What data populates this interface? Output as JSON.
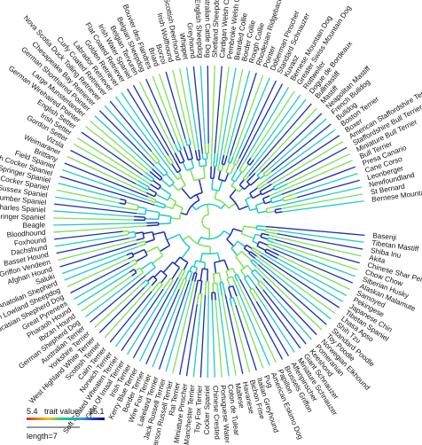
{
  "tree": {
    "tips": [
      "Basenji",
      "Tibetan Mastiff",
      "Shiba Inu",
      "Akita",
      "Chinese Shar Pei",
      "Chow Chow",
      "Siberian Husky",
      "Alaskan Malamute",
      "Samoyed",
      "Pekingese",
      "Japanese Chin",
      "Tibetan Spaniel",
      "Lhasa Apso",
      "Shih Tzu",
      "Standard Poodle",
      "Toy Poodle",
      "Norwegian Elkhound",
      "Pomeranian",
      "Keeshond",
      "Giant Schnauzer",
      "Miniature Schnauzer",
      "Affenpinscher",
      "Brussels Griffon",
      "Papillon",
      "American Eskimo Dog",
      "Pug",
      "Italian Greyhound",
      "Bichon Frise",
      "Havanese",
      "Maltese",
      "Coton de Tulear",
      "Portuguese Water Dog",
      "Chinese Crested",
      "Cocker Spaniel",
      "Toy Fox Terrier",
      "Toy Manchester Terrier",
      "Miniature Pinscher",
      "Rat Terrier",
      "Parson Russell Terrier",
      "Jack Russell Terrier",
      "Lakeland Terrier",
      "Wire Fox Terrier",
      "Border Terrier",
      "Kerry Blue Terrier",
      "Irish Terrier",
      "Glen Of Imaal Terrier",
      "Soft Coated Wheaten Terrier",
      "Norwich Terrier",
      "Cairn Terrier",
      "Scottish Terrier",
      "West Highland White Terrier",
      "Yorkshire Terrier",
      "Australian Terrier",
      "German Shepherd Dog",
      "Ibizan Hound",
      "Pharaoh Hound",
      "Great Pyrenees",
      "Caucasian Shepherd Dog",
      "Polish Lowland Sheepdog",
      "Anatolian Shepherd",
      "Saluki",
      "Afghan Hound",
      "Petite Basset Griffon Vendeen",
      "Basset Hound",
      "Dachshund",
      "Foxhound",
      "Bloodhound",
      "Beagle",
      "English Springer Spaniel",
      "Cavalier King Charles Spaniel",
      "Clumber Spaniel",
      "Sussex Spaniel",
      "American Cocker Spaniel",
      "Welsh Springer Spaniel",
      "English Cocker Spaniel",
      "Field Spaniel",
      "Brittany",
      "Weimaraner",
      "Vizsla",
      "Gordon Setter",
      "Irish Setter",
      "English Setter",
      "German Wirehaired Pointer",
      "Large Munsterlander",
      "German Shorthaired Pointer",
      "Chesapeake Bay Retriever",
      "Nova Scotia Duck Tolling Retriever",
      "Curly Coated Retriever",
      "Labrador Retriever",
      "Golden Retriever",
      "Flat Coated Retriever",
      "Irish Water Spaniel",
      "Belgian Tervuren",
      "Belgian Sheepdog",
      "Bouvier des Flandres",
      "Briard",
      "Borzoi",
      "Irish Wolfhound",
      "Scottish Deerhound",
      "Whippet",
      "Greyhound",
      "Old English Sheepdog",
      "Australian Cattle Dog",
      "Shetland Sheepdog",
      "Cardigan Welsh Corgi",
      "Pembroke Welsh Corgi",
      "Bearded Collie",
      "Border Collie",
      "Rough Collie",
      "Rhodesian Ridgeback",
      "Pointer",
      "Doberman Pinscher",
      "Standard Schnauzer",
      "Kuvasz",
      "Bernese Mountain Dog",
      "Greater Swiss Mountain Dog",
      "Rottweiler",
      "Dogue de Bordeaux",
      "Bullmastiff",
      "Mastiff",
      "Neapolitan Mastiff",
      "French Bulldog",
      "Bulldog",
      "Boston Terrier",
      "Boxer",
      "American Staffordshire Terrier",
      "Staffordshire Bull Terrier",
      "Miniature Bull Terrier",
      "Bull Terrier",
      "Presa Canario",
      "Cane Corso",
      "Leonberger",
      "Newfoundland",
      "St Bernard",
      "Bernese Mountain Dog"
    ]
  },
  "legend": {
    "min_value": "5.4",
    "title": "trait value",
    "max_value": "15.1",
    "scale_label": "length=7",
    "gradient_colors": [
      "#c0392b",
      "#e67e22",
      "#f1c40f",
      "#2ecc71",
      "#1abc9c",
      "#3498db",
      "#1f3bbf",
      "#0b0b6e"
    ]
  },
  "palette": {
    "branch_low": "#7ee05a",
    "branch_mid": "#22c9c9",
    "branch_high": "#1a2fb0"
  }
}
